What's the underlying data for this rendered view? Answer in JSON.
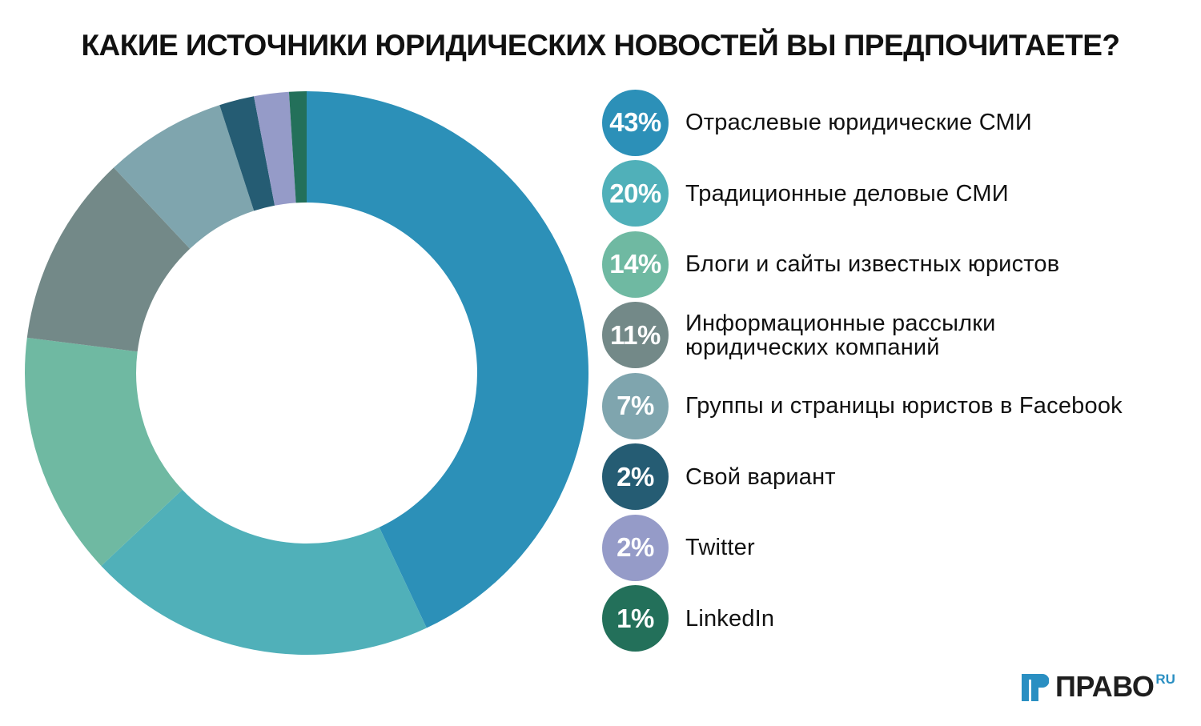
{
  "chart_data": {
    "type": "pie",
    "donut": true,
    "title": "КАКИЕ ИСТОЧНИКИ ЮРИДИЧЕСКИХ НОВОСТЕЙ ВЫ ПРЕДПОЧИТАЕТЕ?",
    "legend_position": "right",
    "slices": [
      {
        "label_lines": [
          "Отраслевые юридические СМИ"
        ],
        "value": 43,
        "display": "43%",
        "color": "#2c90b8"
      },
      {
        "label_lines": [
          "Традиционные деловые СМИ"
        ],
        "value": 20,
        "display": "20%",
        "color": "#50b0b9"
      },
      {
        "label_lines": [
          "Блоги и сайты известных юристов"
        ],
        "value": 14,
        "display": "14%",
        "color": "#6fb9a2"
      },
      {
        "label_lines": [
          "Информационные рассылки",
          "юридических компаний"
        ],
        "value": 11,
        "display": "11%",
        "color": "#738988"
      },
      {
        "label_lines": [
          "Группы и страницы юристов в Facebook"
        ],
        "value": 7,
        "display": "7%",
        "color": "#7fa5ae"
      },
      {
        "label_lines": [
          "Свой вариант"
        ],
        "value": 2,
        "display": "2%",
        "color": "#255c73"
      },
      {
        "label_lines": [
          "Twitter"
        ],
        "value": 2,
        "display": "2%",
        "color": "#959bc8"
      },
      {
        "label_lines": [
          "LinkedIn"
        ],
        "value": 1,
        "display": "1%",
        "color": "#23705a"
      }
    ]
  },
  "logo": {
    "text": "ПРАВО",
    "suffix": "RU",
    "accent_color": "#2a8fc2"
  }
}
